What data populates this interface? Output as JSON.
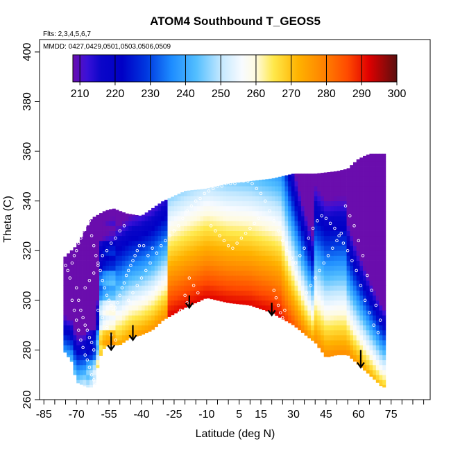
{
  "chart_data": {
    "type": "heatmap",
    "title": "ATOM4 Southbound T_GEOS5",
    "subtitle_flights": "Flts: 2,3,4,5,6,7",
    "subtitle_dates": "MMDD: 0427,0429,0501,0503,0506,0509",
    "xlabel": "Latitude (deg N)",
    "ylabel": "Theta (C)",
    "xlim": [
      -87,
      93
    ],
    "ylim": [
      260,
      405
    ],
    "x_ticks": [
      -85,
      -70,
      -55,
      -40,
      -25,
      -10,
      5,
      15,
      30,
      45,
      60,
      75
    ],
    "x_minor_step": 5,
    "y_ticks": [
      260,
      280,
      300,
      320,
      340,
      360,
      380,
      400
    ],
    "colorbar": {
      "range": [
        208,
        300
      ],
      "ticks": [
        210,
        220,
        230,
        240,
        250,
        260,
        270,
        280,
        290,
        300
      ],
      "colors": [
        {
          "v": 208,
          "c": "#6a0dad"
        },
        {
          "v": 212,
          "c": "#3a10d8"
        },
        {
          "v": 216,
          "c": "#0b06c8"
        },
        {
          "v": 222,
          "c": "#0000c6"
        },
        {
          "v": 229,
          "c": "#0039e0"
        },
        {
          "v": 236,
          "c": "#1d8cff"
        },
        {
          "v": 243,
          "c": "#52beff"
        },
        {
          "v": 250,
          "c": "#c3e8ff"
        },
        {
          "v": 256,
          "c": "#f8fbff"
        },
        {
          "v": 260,
          "c": "#fffbe0"
        },
        {
          "v": 265,
          "c": "#ffe84a"
        },
        {
          "v": 272,
          "c": "#ffb200"
        },
        {
          "v": 279,
          "c": "#ff8400"
        },
        {
          "v": 286,
          "c": "#ff4a00"
        },
        {
          "v": 292,
          "c": "#e00000"
        },
        {
          "v": 300,
          "c": "#5a0f0f"
        }
      ]
    },
    "field": {
      "lat_range": [
        -76,
        71
      ],
      "lat_step": 1.5,
      "theta_step": 2,
      "top_boundary": [
        [
          -76,
          317
        ],
        [
          -70,
          322
        ],
        [
          -63,
          333
        ],
        [
          -57,
          336
        ],
        [
          -53,
          337
        ],
        [
          -47,
          335
        ],
        [
          -40,
          334
        ],
        [
          -30,
          340
        ],
        [
          -20,
          344
        ],
        [
          -10,
          345
        ],
        [
          0,
          347
        ],
        [
          10,
          348
        ],
        [
          20,
          349
        ],
        [
          30,
          351
        ],
        [
          40,
          351
        ],
        [
          50,
          352
        ],
        [
          55,
          353
        ],
        [
          60,
          357
        ],
        [
          65,
          359
        ],
        [
          71,
          359
        ]
      ],
      "bottom_boundary": [
        [
          -76,
          280
        ],
        [
          -72,
          275
        ],
        [
          -70,
          267
        ],
        [
          -65,
          265
        ],
        [
          -62,
          265
        ],
        [
          -60,
          274
        ],
        [
          -58,
          280
        ],
        [
          -55,
          282
        ],
        [
          -50,
          282
        ],
        [
          -45,
          285
        ],
        [
          -40,
          286
        ],
        [
          -35,
          288
        ],
        [
          -30,
          292
        ],
        [
          -20,
          297
        ],
        [
          -10,
          301
        ],
        [
          0,
          299
        ],
        [
          10,
          298
        ],
        [
          20,
          295
        ],
        [
          30,
          290
        ],
        [
          37,
          285
        ],
        [
          40,
          283
        ],
        [
          45,
          277
        ],
        [
          50,
          278
        ],
        [
          55,
          278
        ],
        [
          60,
          274
        ],
        [
          65,
          270
        ],
        [
          71,
          265
        ]
      ]
    },
    "observation_points": [
      [
        -75,
        314
      ],
      [
        -74,
        312
      ],
      [
        -73,
        309
      ],
      [
        -72,
        315
      ],
      [
        -71,
        318
      ],
      [
        -70,
        320
      ],
      [
        -69,
        323
      ],
      [
        -68,
        325
      ],
      [
        -67,
        328
      ],
      [
        -66,
        330
      ],
      [
        -65,
        331
      ],
      [
        -64,
        332
      ],
      [
        -63,
        326
      ],
      [
        -62,
        322
      ],
      [
        -61,
        318
      ],
      [
        -60,
        315
      ],
      [
        -59,
        312
      ],
      [
        -58,
        308
      ],
      [
        -57,
        305
      ],
      [
        -56,
        302
      ],
      [
        -55,
        300
      ],
      [
        -54,
        298
      ],
      [
        -53,
        296
      ],
      [
        -52,
        297
      ],
      [
        -51,
        299
      ],
      [
        -50,
        302
      ],
      [
        -49,
        305
      ],
      [
        -48,
        307
      ],
      [
        -47,
        310
      ],
      [
        -46,
        312
      ],
      [
        -45,
        314
      ],
      [
        -44,
        316
      ],
      [
        -43,
        318
      ],
      [
        -42,
        320
      ],
      [
        -41,
        322
      ],
      [
        -70,
        305
      ],
      [
        -69,
        300
      ],
      [
        -68,
        296
      ],
      [
        -67,
        293
      ],
      [
        -66,
        290
      ],
      [
        -65,
        288
      ],
      [
        -64,
        285
      ],
      [
        -63,
        283
      ],
      [
        -62,
        280
      ],
      [
        -72,
        300
      ],
      [
        -71,
        296
      ],
      [
        -70,
        292
      ],
      [
        -69,
        288
      ],
      [
        -68,
        284
      ],
      [
        -67,
        281
      ],
      [
        -66,
        278
      ],
      [
        -65,
        276
      ],
      [
        -64,
        273
      ],
      [
        -63,
        270
      ],
      [
        -62,
        268
      ],
      [
        -61,
        266
      ],
      [
        -66,
        305
      ],
      [
        -64,
        308
      ],
      [
        -62,
        311
      ],
      [
        -60,
        314
      ],
      [
        -58,
        318
      ],
      [
        -56,
        320
      ],
      [
        -54,
        323
      ],
      [
        -52,
        325
      ],
      [
        -50,
        328
      ],
      [
        -48,
        330
      ],
      [
        -39,
        322
      ],
      [
        -37,
        318
      ],
      [
        -35,
        321
      ],
      [
        -33,
        319
      ],
      [
        -31,
        322
      ],
      [
        -29,
        324
      ],
      [
        -27,
        326
      ],
      [
        -25,
        328
      ],
      [
        -23,
        330
      ],
      [
        -21,
        333
      ],
      [
        -19,
        336
      ],
      [
        -17,
        338
      ],
      [
        -15,
        340
      ],
      [
        -13,
        341
      ],
      [
        -11,
        343
      ],
      [
        -9,
        344
      ],
      [
        -7,
        345
      ],
      [
        -5,
        346
      ],
      [
        -3,
        346
      ],
      [
        -1,
        347
      ],
      [
        1,
        347
      ],
      [
        3,
        347
      ],
      [
        5,
        348
      ],
      [
        7,
        348
      ],
      [
        9,
        348
      ],
      [
        11,
        347
      ],
      [
        13,
        345
      ],
      [
        15,
        343
      ],
      [
        17,
        340
      ],
      [
        19,
        336
      ],
      [
        21,
        332
      ],
      [
        23,
        328
      ],
      [
        25,
        324
      ],
      [
        27,
        320
      ],
      [
        29,
        317
      ],
      [
        31,
        315
      ],
      [
        33,
        318
      ],
      [
        35,
        321
      ],
      [
        37,
        325
      ],
      [
        39,
        329
      ],
      [
        41,
        332
      ],
      [
        43,
        334
      ],
      [
        45,
        333
      ],
      [
        47,
        331
      ],
      [
        49,
        329
      ],
      [
        51,
        326
      ],
      [
        53,
        323
      ],
      [
        55,
        320
      ],
      [
        57,
        316
      ],
      [
        59,
        312
      ],
      [
        61,
        306
      ],
      [
        63,
        300
      ],
      [
        65,
        295
      ],
      [
        67,
        290
      ],
      [
        69,
        287
      ],
      [
        70,
        292
      ],
      [
        68,
        298
      ],
      [
        66,
        304
      ],
      [
        64,
        310
      ],
      [
        62,
        318
      ],
      [
        60,
        324
      ],
      [
        58,
        330
      ],
      [
        56,
        334
      ],
      [
        54,
        338
      ],
      [
        -18,
        309
      ],
      [
        -16,
        306
      ],
      [
        -14,
        303
      ],
      [
        -19,
        299
      ],
      [
        -20,
        302
      ],
      [
        -22,
        296
      ],
      [
        -21,
        294
      ],
      [
        22,
        301
      ],
      [
        23,
        298
      ],
      [
        24,
        295
      ],
      [
        25,
        293
      ],
      [
        26,
        296
      ],
      [
        21,
        304
      ],
      [
        -60,
        296
      ],
      [
        -58,
        293
      ],
      [
        -56,
        289
      ],
      [
        -54,
        286
      ],
      [
        -52,
        284
      ],
      [
        -46,
        300
      ],
      [
        -44,
        303
      ],
      [
        -42,
        306
      ],
      [
        -40,
        309
      ],
      [
        -38,
        312
      ],
      [
        -36,
        315
      ],
      [
        36,
        303
      ],
      [
        38,
        306
      ],
      [
        40,
        309
      ],
      [
        42,
        312
      ],
      [
        44,
        315
      ],
      [
        46,
        318
      ],
      [
        48,
        321
      ],
      [
        50,
        324
      ],
      [
        52,
        327
      ],
      [
        -8,
        330
      ],
      [
        -6,
        328
      ],
      [
        -4,
        326
      ],
      [
        -2,
        324
      ],
      [
        0,
        322
      ],
      [
        2,
        321
      ],
      [
        4,
        323
      ],
      [
        6,
        325
      ],
      [
        8,
        327
      ],
      [
        10,
        329
      ],
      [
        12,
        331
      ],
      [
        14,
        333
      ]
    ],
    "arrows": [
      {
        "lat": -54,
        "theta_start": 287,
        "theta_end": 280
      },
      {
        "lat": -44,
        "theta_start": 290,
        "theta_end": 284
      },
      {
        "lat": -18,
        "theta_start": 302,
        "theta_end": 297
      },
      {
        "lat": 20,
        "theta_start": 299,
        "theta_end": 294
      },
      {
        "lat": 61,
        "theta_start": 280,
        "theta_end": 273
      }
    ]
  }
}
